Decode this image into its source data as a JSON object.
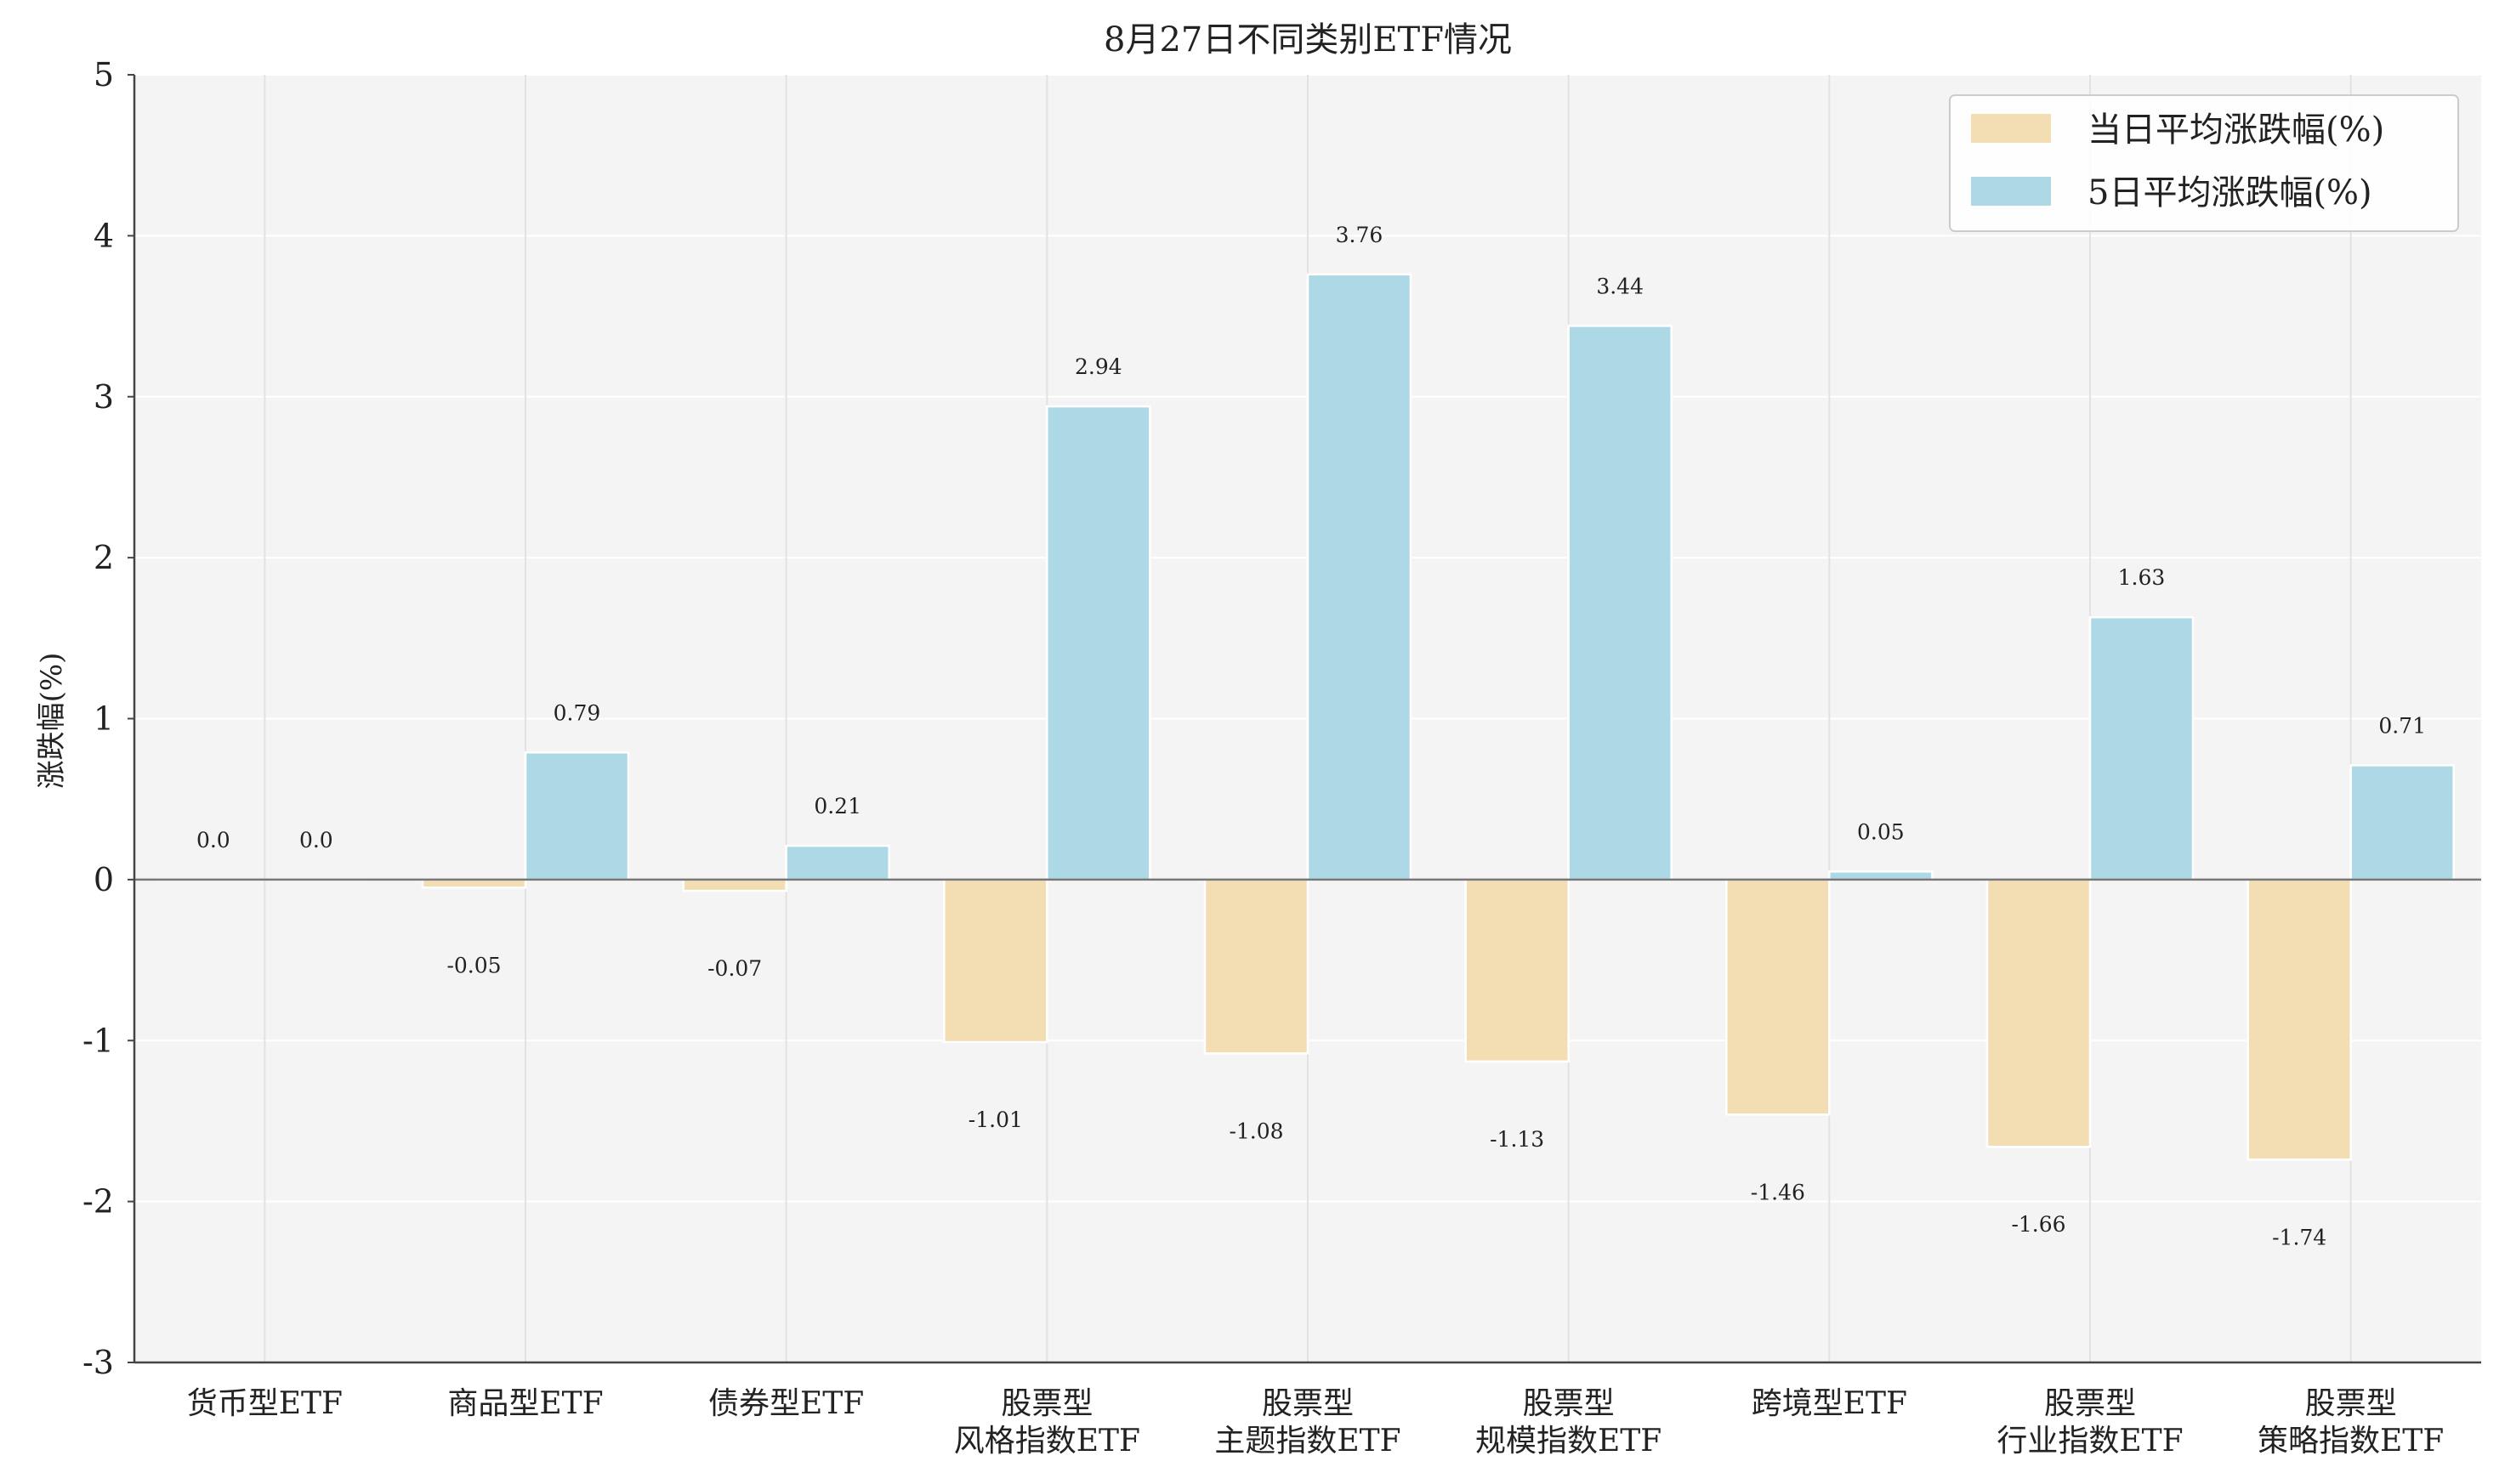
{
  "chart_data": {
    "type": "bar",
    "title": "8月27日不同类别ETF情况",
    "ylabel": "涨跌幅(%)",
    "xlabel": "",
    "ylim": [
      -3,
      5
    ],
    "yticks": [
      "-3",
      "-2",
      "-1",
      "0",
      "1",
      "2",
      "3",
      "4",
      "5"
    ],
    "categories": [
      "货币型ETF",
      "商品型ETF",
      "债券型ETF",
      "股票型\n风格指数ETF",
      "股票型\n主题指数ETF",
      "股票型\n规模指数ETF",
      "跨境型ETF",
      "股票型\n行业指数ETF",
      "股票型\n策略指数ETF"
    ],
    "series": [
      {
        "name": "当日平均涨跌幅(%)",
        "color": "#f3deb4",
        "values": [
          0.0,
          -0.05,
          -0.07,
          -1.01,
          -1.08,
          -1.13,
          -1.46,
          -1.66,
          -1.74
        ],
        "labels": [
          "0.0",
          "-0.05",
          "-0.07",
          "-1.01",
          "-1.08",
          "-1.13",
          "-1.46",
          "-1.66",
          "-1.74"
        ]
      },
      {
        "name": "5日平均涨跌幅(%)",
        "color": "#add8e6",
        "values": [
          0.0,
          0.79,
          0.21,
          2.94,
          3.76,
          3.44,
          0.05,
          1.63,
          0.71
        ],
        "labels": [
          "0.0",
          "0.79",
          "0.21",
          "2.94",
          "3.76",
          "3.44",
          "0.05",
          "1.63",
          "0.71"
        ]
      }
    ],
    "grid": true,
    "legend_position": "top-right"
  }
}
